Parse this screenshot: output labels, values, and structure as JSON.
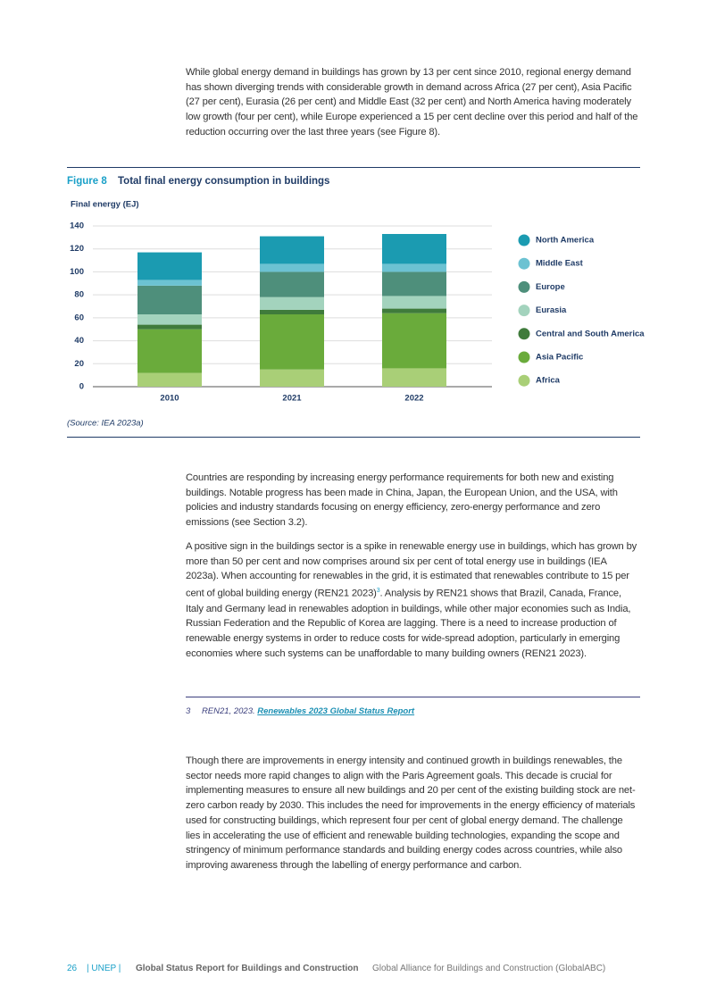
{
  "paragraphs": [
    "While global energy demand in buildings has grown by 13 per cent since 2010, regional energy demand has shown diverging trends with considerable growth in demand across Africa (27 per cent), Asia Pacific (27 per cent), Eurasia (26 per cent) and Middle East (32 per cent) and North America having moderately low growth (four per cent), while Europe experienced a 15 per cent decline over this period and half of the reduction occurring over the last three years (see Figure 8).",
    "Countries are responding by increasing energy performance requirements for both new and existing buildings. Notable progress has been made in China, Japan, the European Union, and the USA, with policies and industry standards focusing on energy efficiency, zero-energy performance and zero emissions (see Section 3.2).",
    {
      "before": "A positive sign in the buildings sector is a spike in renewable energy use in buildings, which has grown by more than 50 per cent and now comprises around six per cent of total energy use in buildings (IEA 2023a). When accounting for renewables in the grid, it is estimated that renewables contribute to 15 per cent of global building energy (REN21 2023)",
      "footnote_ref": "3",
      "after": ". Analysis by REN21 shows that Brazil, Canada, France, Italy and Germany lead in renewables adoption in buildings, while other major economies such as India, Russian Federation and the Republic of Korea are lagging. There is a need to increase production of renewable energy systems in order to reduce costs for wide-spread adoption, particularly in emerging economies where such systems can be unaffordable to many building owners (REN21 2023)."
    },
    "Though there are improvements in energy intensity and continued growth in buildings renewables, the sector needs more rapid changes to align with the Paris Agreement goals. This decade is crucial for implementing measures to ensure all new buildings and 20 per cent of the existing building stock are net-zero carbon ready by 2030. This includes the need for improvements in the energy efficiency of materials used for constructing buildings, which represent four per cent of global energy demand. The challenge lies in accelerating the use of efficient and renewable building technologies, expanding the scope and stringency of minimum performance standards and building energy codes across countries, while also improving awareness through the labelling of energy performance and carbon."
  ],
  "footnote": {
    "number": "3",
    "source": "REN21, 2023.",
    "link": "Renewables 2023 Global Status Report"
  },
  "footer": {
    "page": "26",
    "org": "| UNEP |",
    "report": "Global Status Report for Buildings and Construction",
    "alliance": "Global Alliance for Buildings and Construction (GlobalABC)"
  },
  "chart_data": {
    "type": "stacked-bar",
    "figure_label": "Figure 8",
    "title": "Total final energy consumption in buildings",
    "y_label": "Final energy (EJ)",
    "source": "(Source: IEA 2023a)",
    "categories": [
      "2010",
      "2021",
      "2022"
    ],
    "series": [
      {
        "name": "North America",
        "color": "#1b9bb1",
        "values": [
          24,
          24,
          26
        ]
      },
      {
        "name": "Middle East",
        "color": "#6cc2d2",
        "values": [
          5,
          7,
          7
        ]
      },
      {
        "name": "Europe",
        "color": "#4e8f7b",
        "values": [
          25,
          22,
          21
        ]
      },
      {
        "name": "Eurasia",
        "color": "#a3d3bd",
        "values": [
          9,
          11,
          11
        ]
      },
      {
        "name": "Central and South America",
        "color": "#3f7b3b",
        "values": [
          4,
          4,
          4
        ]
      },
      {
        "name": "Asia Pacific",
        "color": "#6aab3b",
        "values": [
          38,
          48,
          48
        ]
      },
      {
        "name": "Africa",
        "color": "#a9cf77",
        "values": [
          12,
          15,
          16
        ]
      }
    ],
    "ylim": [
      0,
      140
    ],
    "yticks": [
      0,
      20,
      40,
      60,
      80,
      100,
      120,
      140
    ],
    "grid": true
  }
}
